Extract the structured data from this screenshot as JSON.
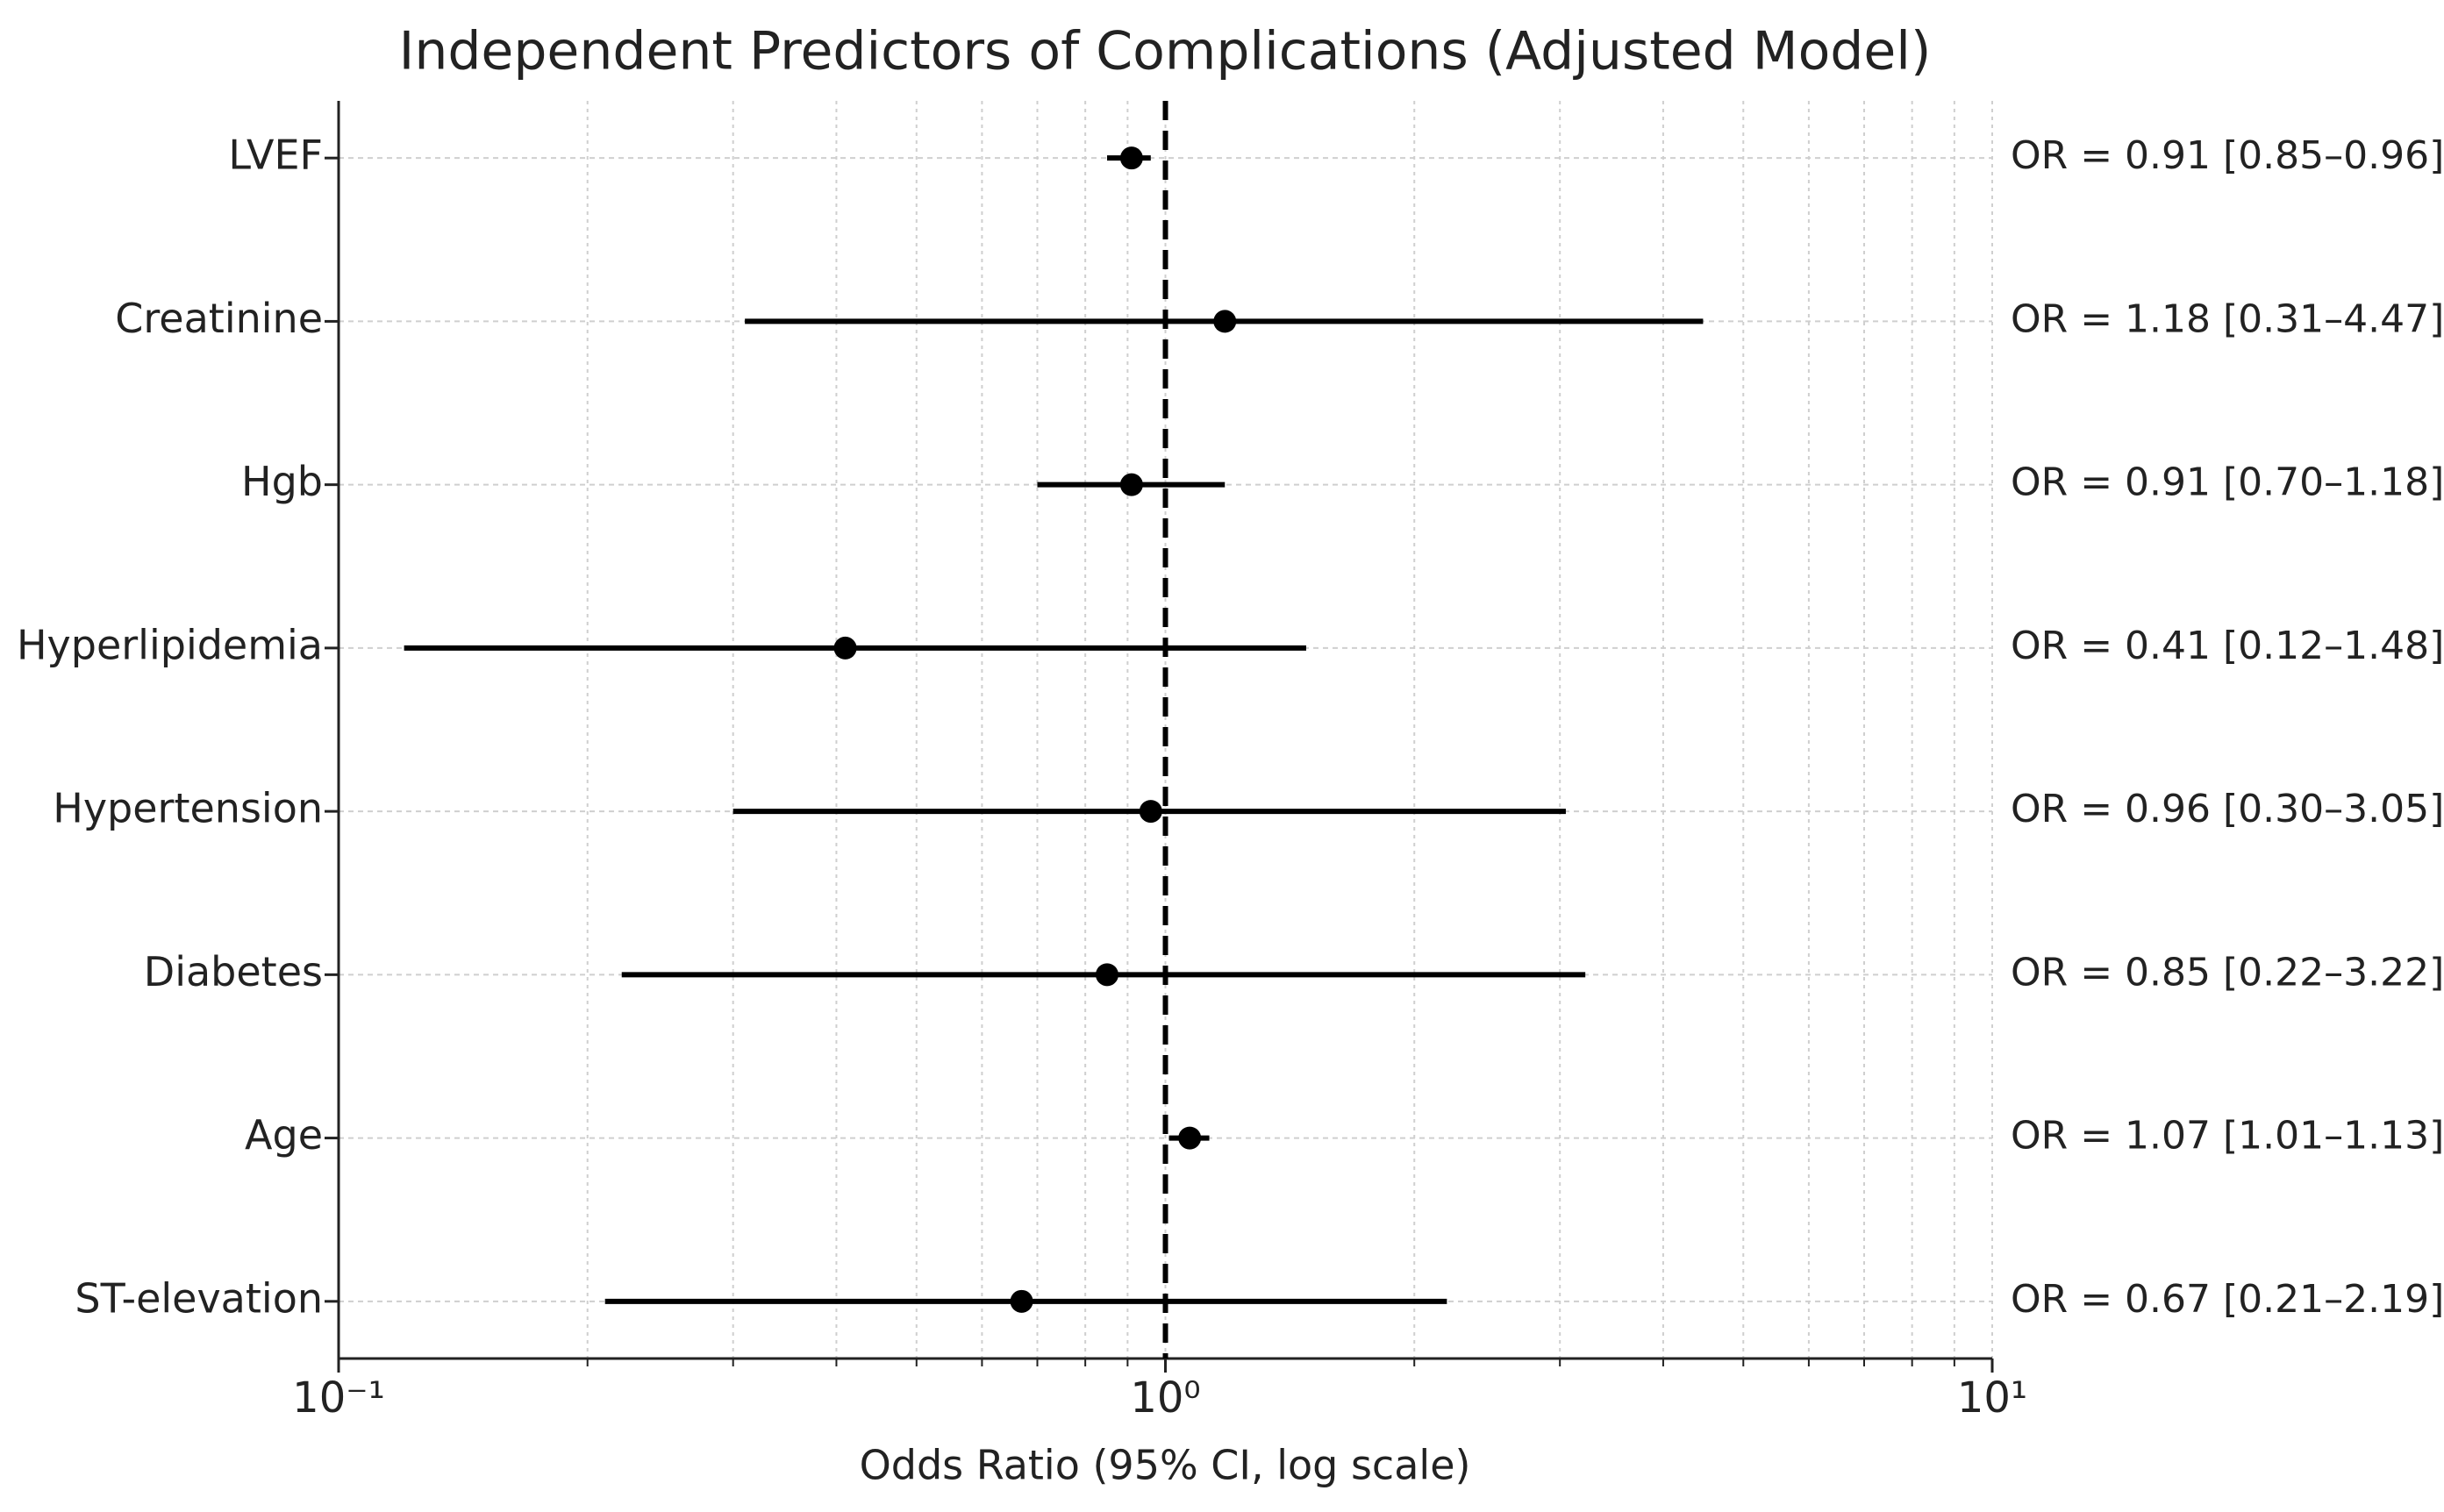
{
  "chart_data": {
    "type": "forest",
    "title": "Independent Predictors of Complications (Adjusted Model)",
    "x_label": "Odds Ratio (95% CI, log scale)",
    "categories": [
      "LVEF",
      "Creatinine",
      "Hgb",
      "Hyperlipidemia",
      "Hypertension",
      "Diabetes",
      "Age",
      "ST-elevation"
    ],
    "values": [
      0.91,
      1.18,
      0.91,
      0.41,
      0.96,
      0.85,
      1.07,
      0.67
    ],
    "lower": [
      0.85,
      0.31,
      0.7,
      0.12,
      0.3,
      0.22,
      1.01,
      0.21
    ],
    "upper": [
      0.96,
      4.47,
      1.18,
      1.48,
      3.05,
      3.22,
      1.13,
      2.19
    ],
    "value_labels": [
      "OR = 0.91 [0.85–0.96]",
      "OR = 1.18 [0.31–4.47]",
      "OR = 0.91 [0.70–1.18]",
      "OR = 0.41 [0.12–1.48]",
      "OR = 0.96 [0.30–3.05]",
      "OR = 0.85 [0.22–3.22]",
      "OR = 1.07 [1.01–1.13]",
      "OR = 0.67 [0.21–2.19]"
    ],
    "color": "#000000",
    "xscale": "log",
    "xlim": [
      0.1,
      10
    ],
    "xticks": [
      {
        "value": 0.1,
        "label": "10⁻¹"
      },
      {
        "value": 1,
        "label": "10⁰"
      },
      {
        "value": 10,
        "label": "10¹"
      }
    ],
    "xticks_minor": [
      0.2,
      0.3,
      0.4,
      0.5,
      0.6,
      0.7,
      0.8,
      0.9,
      2,
      3,
      4,
      5,
      6,
      7,
      8,
      9
    ],
    "reference_line": 1,
    "grid": true
  }
}
